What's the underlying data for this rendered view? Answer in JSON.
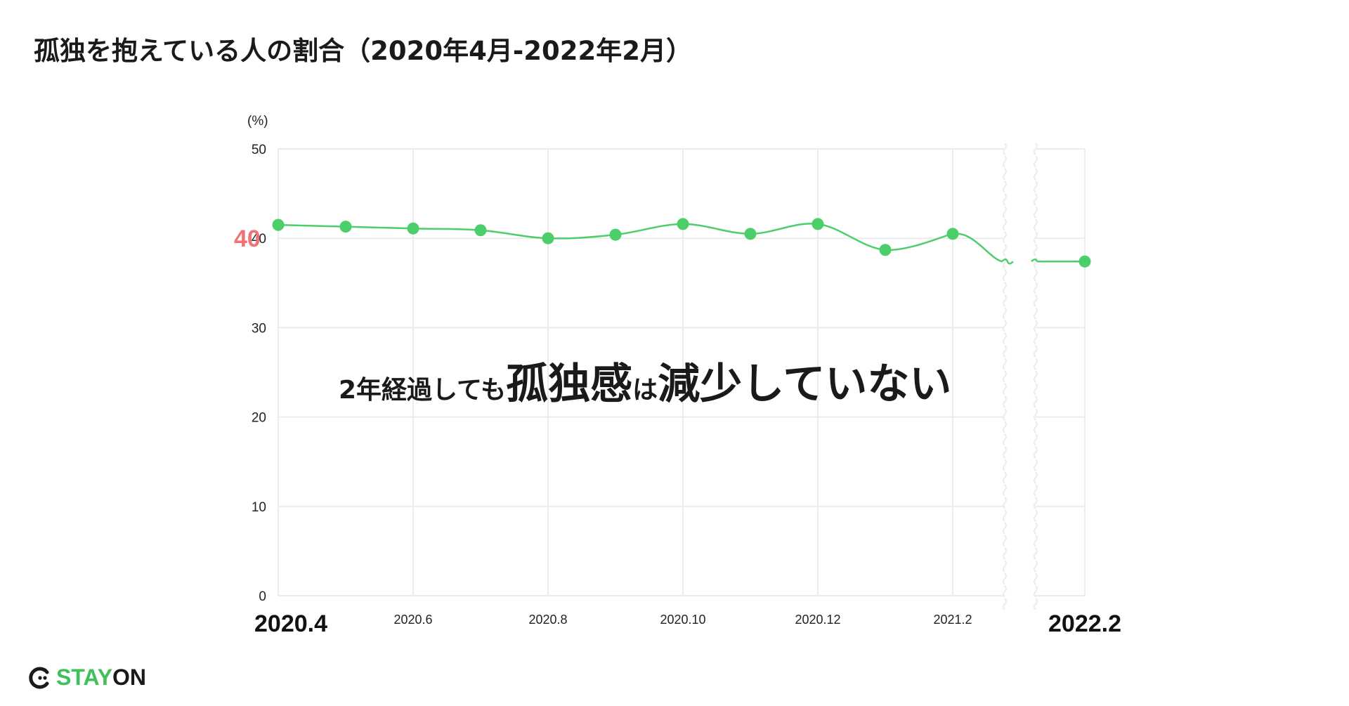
{
  "title": "孤独を抱えている人の割合（2020年4月-2022年2月）",
  "colors": {
    "line": "#4cce6a",
    "highlight": "#f07272",
    "grid": "#ececec",
    "text": "#1a1a1a"
  },
  "chart_data": {
    "type": "line",
    "title": "孤独を抱えている人の割合（2020年4月-2022年2月）",
    "ylabel": "(%)",
    "ylim": [
      0,
      50
    ],
    "yticks": [
      "0",
      "10",
      "20",
      "30",
      "40",
      "50"
    ],
    "y_highlight": "40",
    "x": [
      "2020.4",
      "2020.5",
      "2020.6",
      "2020.7",
      "2020.8",
      "2020.9",
      "2020.10",
      "2020.11",
      "2020.12",
      "2021.1",
      "2021.2",
      "2022.2"
    ],
    "xtick_labels": [
      {
        "label": "2020.4",
        "bold": true
      },
      {
        "label": "2020.6",
        "bold": false
      },
      {
        "label": "2020.8",
        "bold": false
      },
      {
        "label": "2020.10",
        "bold": false
      },
      {
        "label": "2020.12",
        "bold": false
      },
      {
        "label": "2021.2",
        "bold": false
      },
      {
        "label": "2022.2",
        "bold": true
      }
    ],
    "series": [
      {
        "values": [
          41.5,
          41.3,
          41.1,
          40.9,
          40.0,
          40.4,
          41.6,
          40.5,
          41.6,
          38.7,
          40.5,
          37.4
        ]
      }
    ],
    "axis_break": "between 2021.2 and 2022.2",
    "grid": true,
    "annotation": {
      "parts": [
        {
          "text": "2年経過しても",
          "size": "small"
        },
        {
          "text": "孤独感",
          "size": "large"
        },
        {
          "text": "は",
          "size": "small"
        },
        {
          "text": "減少していない",
          "size": "large"
        }
      ]
    }
  },
  "logo": {
    "part1": "STAY",
    "part2": "ON"
  }
}
